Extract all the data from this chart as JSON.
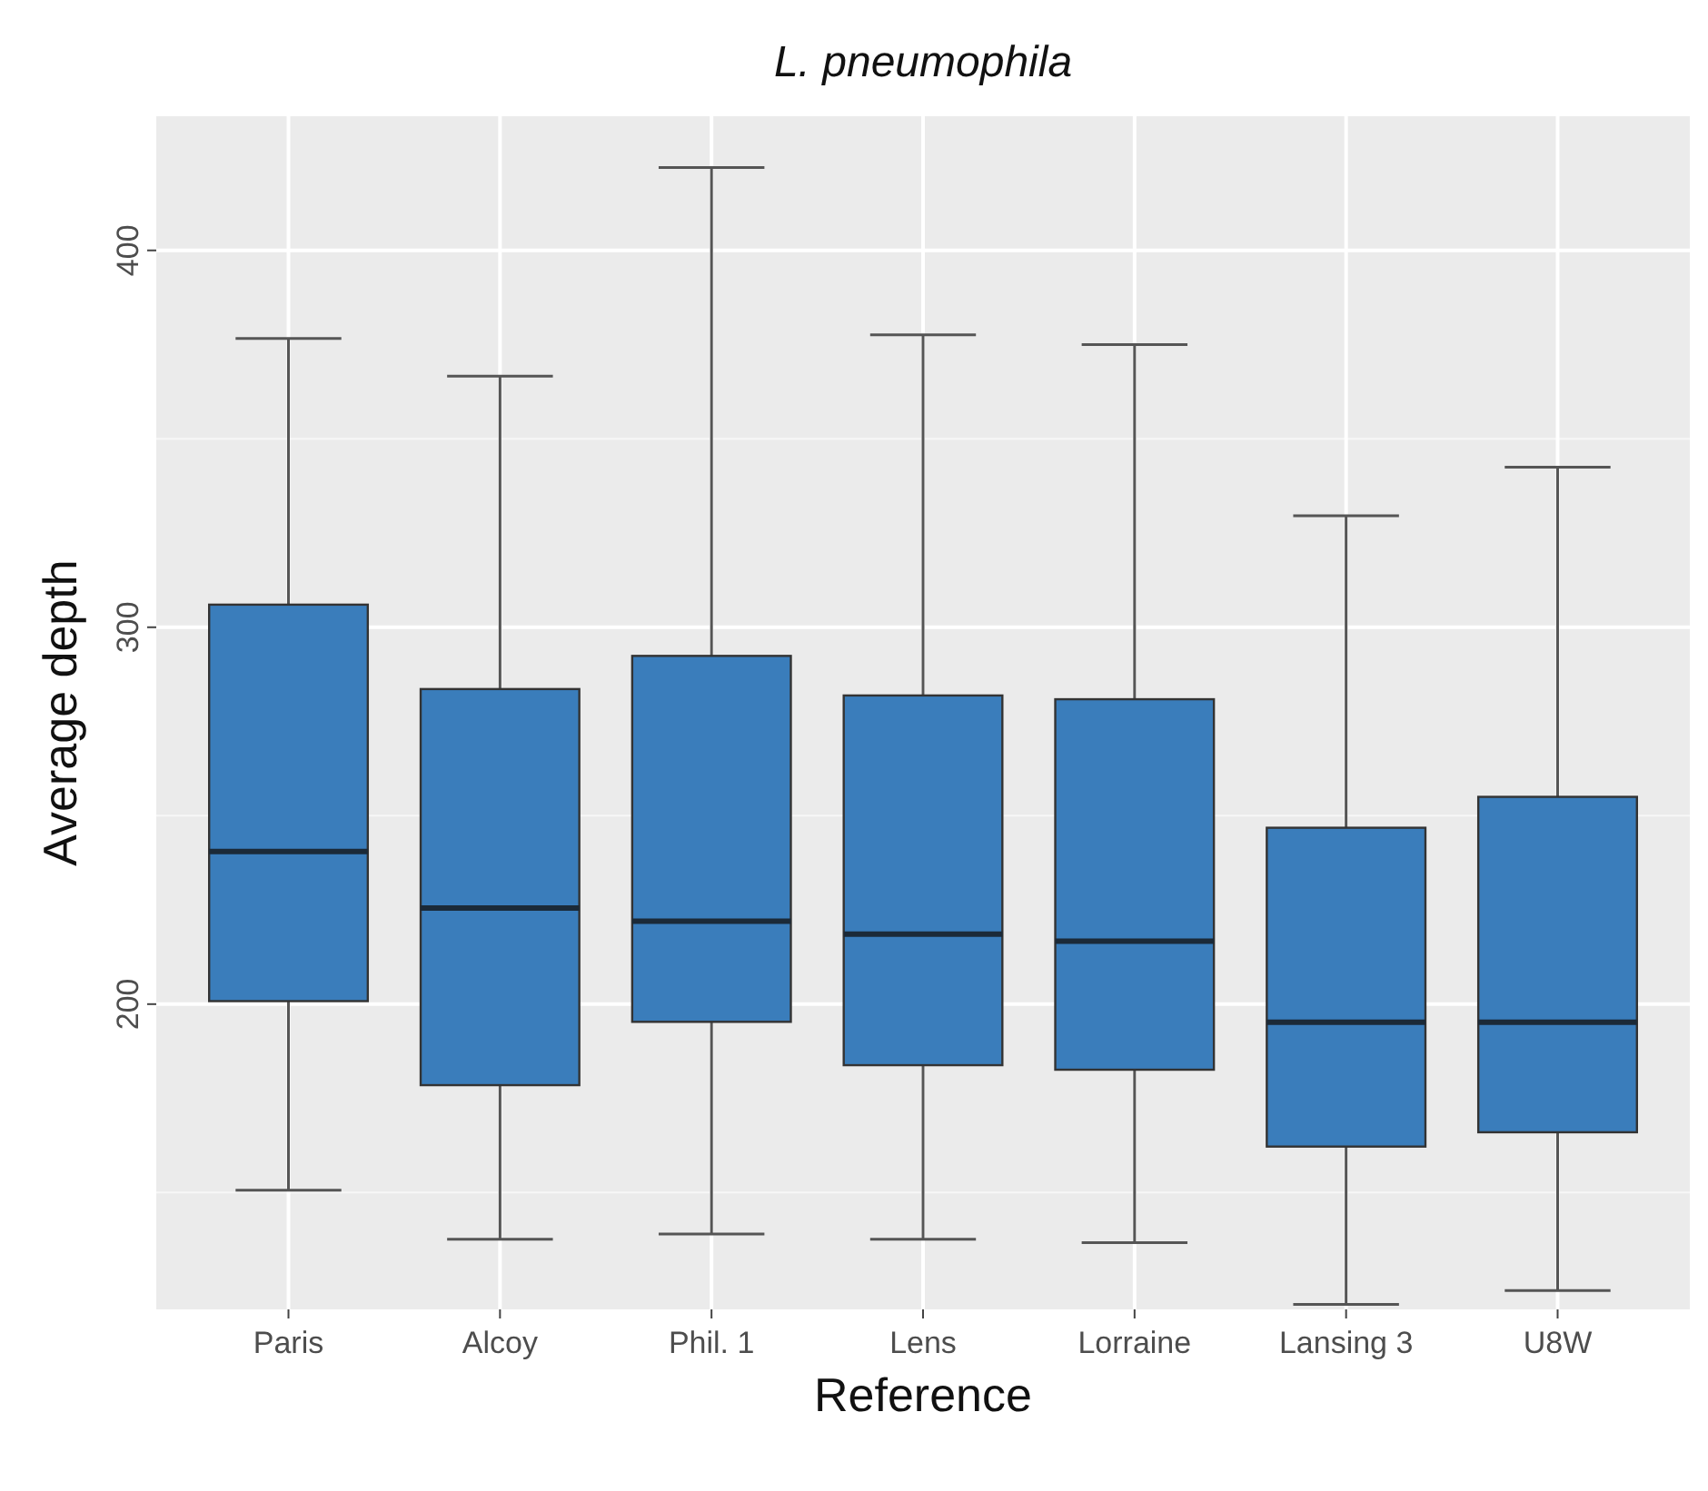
{
  "chart_data": {
    "type": "box",
    "title": "L. pneumophila",
    "xlabel": "Reference",
    "ylabel": "Average depth",
    "categories": [
      "Paris",
      "Alcoy",
      "Phil. 1",
      "Lens",
      "Lorraine",
      "Lansing 3",
      "U8W"
    ],
    "boxes": [
      {
        "low": 150.6,
        "q1": 200.8,
        "median": 240.5,
        "q3": 306,
        "high": 376.6
      },
      {
        "low": 137.6,
        "q1": 178.5,
        "median": 225.5,
        "q3": 283.6,
        "high": 366.6
      },
      {
        "low": 139,
        "q1": 195.3,
        "median": 222,
        "q3": 292.4,
        "high": 422
      },
      {
        "low": 137.6,
        "q1": 183.8,
        "median": 218.6,
        "q3": 281.9,
        "high": 377.6
      },
      {
        "low": 136.7,
        "q1": 182.6,
        "median": 216.7,
        "q3": 280.9,
        "high": 375
      },
      {
        "low": 120.3,
        "q1": 162.2,
        "median": 195.2,
        "q3": 246.8,
        "high": 329.6
      },
      {
        "low": 124,
        "q1": 166,
        "median": 195.2,
        "q3": 255,
        "high": 342.5
      }
    ],
    "color": "#3a7dbb",
    "ylim": [
      119,
      435.6
    ],
    "yticks": [
      200,
      300,
      400
    ],
    "grid": true
  }
}
